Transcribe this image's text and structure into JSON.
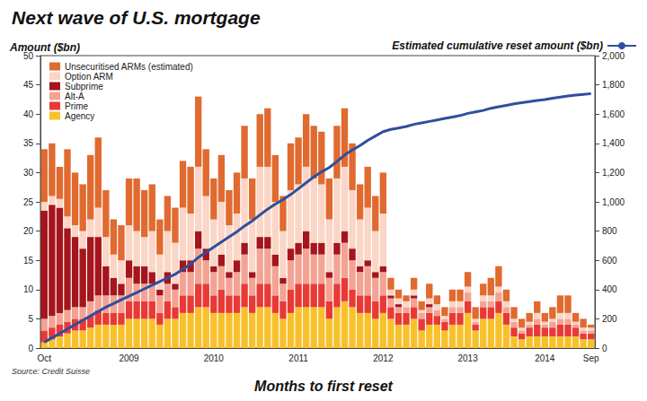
{
  "chart_data": {
    "type": "bar",
    "title": "Next wave of U.S. mortgage",
    "ylabel": "Amount ($bn)",
    "xlabel": "Months to first reset",
    "annotations": [
      "Source: Credit Suisse"
    ],
    "stacked": true,
    "grid": false,
    "legend": "top-left",
    "categories": [
      "Oct",
      null,
      null,
      null,
      null,
      null,
      null,
      null,
      null,
      null,
      null,
      "2009",
      null,
      null,
      null,
      null,
      null,
      null,
      null,
      null,
      null,
      null,
      "2010",
      null,
      null,
      null,
      null,
      null,
      null,
      null,
      null,
      null,
      null,
      "2011",
      null,
      null,
      null,
      null,
      null,
      null,
      null,
      null,
      null,
      null,
      "2012",
      null,
      null,
      null,
      null,
      null,
      null,
      null,
      null,
      null,
      null,
      "2013",
      null,
      null,
      null,
      null,
      null,
      null,
      null,
      null,
      null,
      "2014",
      null,
      null,
      null,
      null,
      null,
      "Sep"
    ],
    "ylim": [
      0,
      50
    ],
    "yticks": [
      0,
      5,
      10,
      15,
      20,
      25,
      30,
      35,
      40,
      45,
      50
    ],
    "y2lim": [
      0,
      2000
    ],
    "y2ticks": [
      0,
      200,
      400,
      600,
      800,
      1000,
      1200,
      1400,
      1600,
      1800,
      2000
    ],
    "series": [
      {
        "name": "Unsecuritised ARMs (estimated)",
        "type": "bar",
        "color": "#e06a2f",
        "values": [
          9,
          9,
          5.5,
          11.5,
          9,
          8,
          11,
          12,
          8,
          6,
          6,
          8,
          9,
          8,
          8,
          6,
          6,
          6,
          8,
          8,
          12,
          8,
          7,
          8,
          6,
          7,
          9,
          7,
          9,
          10,
          8,
          6,
          8,
          8,
          9,
          9,
          9,
          7,
          9,
          10,
          8,
          6,
          7,
          6,
          7,
          2,
          1.5,
          1,
          2,
          1.5,
          2.5,
          1.5,
          1.5,
          2,
          2,
          2.5,
          2,
          2,
          3,
          3.5,
          2,
          2,
          1.5,
          1.5,
          2,
          1.5,
          2,
          3,
          3,
          1.5,
          1.5,
          0.5
        ]
      },
      {
        "name": "Option ARM",
        "type": "bar",
        "color": "#fbd5c5",
        "values": [
          1.5,
          1.5,
          1.5,
          2,
          2,
          3,
          3,
          5,
          5,
          4,
          4,
          6,
          6,
          5,
          7,
          6,
          7,
          7,
          9,
          8,
          11,
          9,
          8,
          9,
          8,
          8,
          11,
          9,
          12,
          12,
          9,
          8,
          10,
          10,
          11,
          11,
          10,
          9,
          11,
          11,
          10,
          8,
          9,
          7,
          9,
          1,
          1,
          1,
          1,
          0.5,
          1,
          1,
          0.5,
          1,
          1,
          1,
          0.5,
          1,
          1,
          1,
          1,
          0.5,
          0.5,
          0.5,
          1,
          0.5,
          0.5,
          1,
          1,
          0.5,
          0.5,
          0.5
        ]
      },
      {
        "name": "Subprime",
        "type": "bar",
        "color": "#a5151c",
        "values": [
          18.5,
          19,
          18,
          14,
          12,
          10,
          11,
          10,
          5,
          3,
          2,
          3,
          3,
          3,
          2,
          1,
          2,
          1,
          2,
          2,
          3,
          2,
          1,
          2,
          1,
          2,
          2,
          1,
          2,
          2,
          2,
          1,
          2,
          2,
          3,
          2,
          2,
          1,
          2,
          2,
          2,
          1,
          1,
          1,
          1,
          0.5,
          0.5,
          0,
          0.5,
          0,
          0.5,
          0,
          0,
          0,
          0,
          0,
          0,
          0,
          0,
          0,
          0,
          0,
          0,
          0,
          0,
          0,
          0,
          0,
          0,
          0,
          0,
          0
        ]
      },
      {
        "name": "Alt-A",
        "type": "bar",
        "color": "#f3a394",
        "values": [
          2,
          2,
          2,
          2,
          2,
          2,
          2.5,
          2.5,
          3,
          3,
          3,
          4,
          3,
          3,
          3,
          3,
          3,
          3,
          4,
          4,
          6,
          4,
          4,
          4,
          3,
          4,
          5,
          3,
          6,
          6,
          5,
          3,
          5,
          5,
          6,
          5,
          5,
          4,
          5,
          6,
          5,
          4,
          5,
          4,
          4,
          1.5,
          1,
          1,
          1.5,
          1,
          1,
          1,
          0.5,
          1,
          1,
          1.5,
          0.5,
          1,
          1,
          1.5,
          1,
          1,
          0.5,
          0.5,
          1,
          0.5,
          1,
          1,
          1,
          0.5,
          0.5,
          0.5
        ]
      },
      {
        "name": "Prime",
        "type": "bar",
        "color": "#e83a35",
        "values": [
          2,
          2,
          2,
          2,
          2,
          2,
          2,
          2.5,
          2,
          2,
          2,
          3,
          3,
          3,
          3,
          2,
          3,
          2,
          3,
          3,
          4,
          4,
          3,
          4,
          3,
          3,
          4,
          3,
          4,
          4,
          3,
          3,
          4,
          4,
          4,
          4,
          4,
          3,
          4,
          4,
          3,
          3,
          3,
          3,
          3,
          2,
          2,
          2,
          2,
          2,
          2,
          1.5,
          1.5,
          2,
          2,
          2,
          1,
          2,
          2,
          2,
          2,
          1.5,
          1,
          1.5,
          2,
          1.5,
          1.5,
          2,
          2,
          1.5,
          1,
          1
        ]
      },
      {
        "name": "Agency",
        "type": "bar",
        "color": "#f8c12c",
        "values": [
          1,
          1.5,
          2,
          2.5,
          3,
          3,
          3.5,
          4,
          4,
          4,
          4,
          5,
          5,
          5,
          5,
          4,
          5,
          5,
          6,
          6,
          7,
          7,
          6,
          6,
          6,
          6,
          7,
          6,
          7,
          7,
          6,
          5,
          6,
          7,
          7,
          7,
          7,
          5,
          7,
          8,
          7,
          6,
          6,
          5,
          6,
          5,
          4,
          4,
          5,
          3,
          4,
          4,
          3,
          4,
          4,
          6,
          3,
          5,
          5,
          6,
          4,
          2,
          1.5,
          2,
          2,
          2,
          2,
          2,
          2,
          2,
          1.5,
          1.5
        ]
      },
      {
        "name": "Estimated cumulative reset amount ($bn)",
        "type": "line",
        "axis": "y2",
        "color": "#2e4f9e",
        "line_style": "solid",
        "values": [
          40,
          70,
          100,
          130,
          160,
          190,
          220,
          250,
          280,
          305,
          330,
          355,
          380,
          405,
          430,
          455,
          480,
          505,
          540,
          575,
          620,
          655,
          690,
          725,
          760,
          795,
          835,
          870,
          910,
          950,
          985,
          1015,
          1050,
          1090,
          1130,
          1170,
          1205,
          1235,
          1275,
          1320,
          1355,
          1385,
          1420,
          1450,
          1480,
          1495,
          1505,
          1515,
          1530,
          1540,
          1550,
          1560,
          1570,
          1580,
          1590,
          1605,
          1615,
          1625,
          1640,
          1650,
          1660,
          1670,
          1678,
          1685,
          1693,
          1700,
          1708,
          1716,
          1724,
          1730,
          1735,
          1740
        ]
      }
    ]
  }
}
